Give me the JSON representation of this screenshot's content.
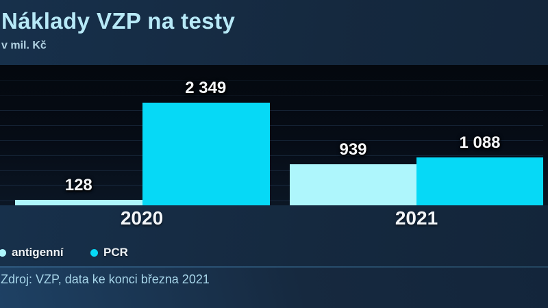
{
  "header": {
    "title": "Náklady VZP na testy",
    "subtitle": "v mil. Kč"
  },
  "chart_data": {
    "type": "bar",
    "title": "Náklady VZP na testy",
    "unit_label": "v mil. Kč",
    "categories": [
      "2020",
      "2021"
    ],
    "series": [
      {
        "name": "antigenní",
        "color": "#aef6fc",
        "values": [
          128,
          939
        ],
        "labels": [
          "128",
          "939"
        ]
      },
      {
        "name": "PCR",
        "color": "#06d9f6",
        "values": [
          2349,
          1088
        ],
        "labels": [
          "2 349",
          "1 088"
        ]
      }
    ],
    "ylim": [
      0,
      3200
    ],
    "grid": true,
    "y_axis_labels": false,
    "legend_position": "bottom-left"
  },
  "footer": {
    "source": "Zdroj: VZP, data ke konci března 2021"
  },
  "colors": {
    "background_navy": "#15293f",
    "plot_background": "#060c16",
    "gridline": "#3a5a7d",
    "antigen_bar": "#aef6fc",
    "pcr_bar": "#06d9f6",
    "title_text": "#b7e9f7",
    "value_label_text": "#f5f7fa",
    "source_text": "#a7d5e9"
  }
}
